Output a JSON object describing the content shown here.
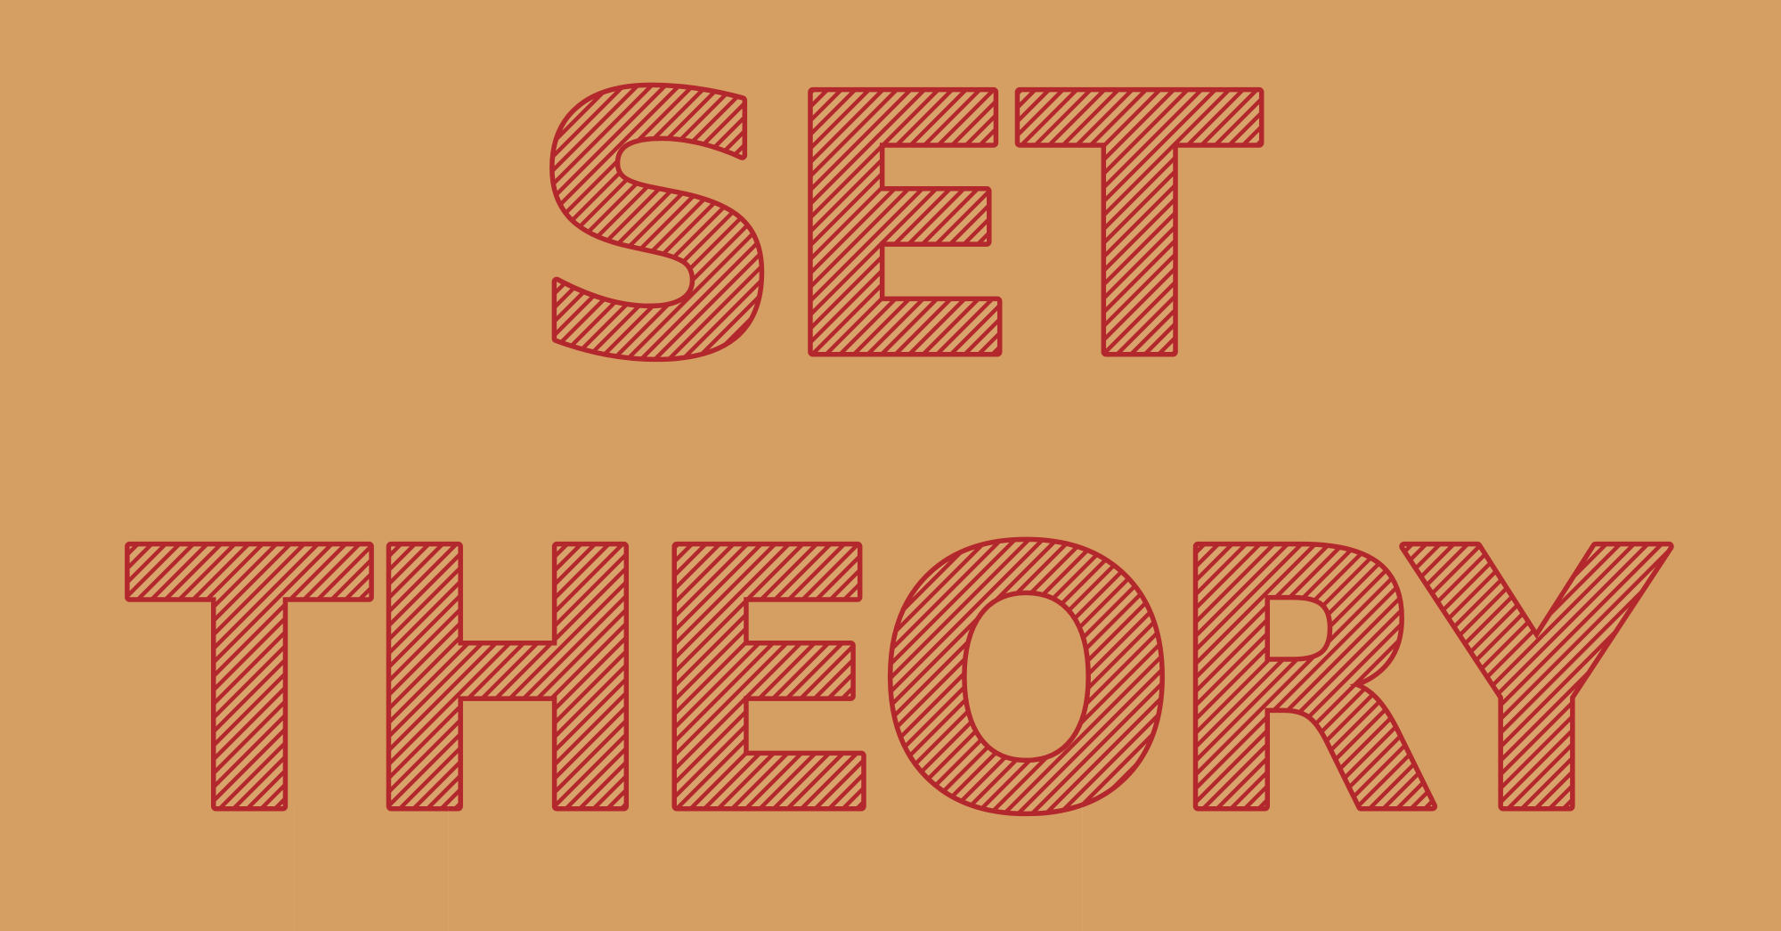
{
  "title": {
    "line1": "SET",
    "line2": "THEORY"
  },
  "colors": {
    "background": "#D59E62",
    "letter_outline": "#B3282C",
    "hatch_stripe": "#B3282C",
    "hatch_gap": "#D9A46B"
  }
}
